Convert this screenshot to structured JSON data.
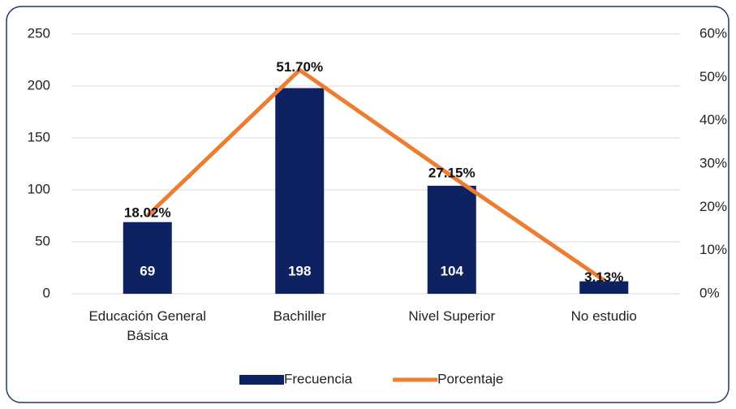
{
  "chart_data": {
    "type": "bar",
    "categories": [
      "Educación General Básica",
      "Bachiller",
      "Nivel Superior",
      "No estudio"
    ],
    "series": [
      {
        "name": "Frecuencia",
        "type": "bar",
        "color": "#0e2160",
        "values": [
          69,
          198,
          104,
          12
        ]
      },
      {
        "name": "Porcentaje",
        "type": "line",
        "axis": "y2",
        "color": "#ed7d31",
        "values": [
          18.02,
          51.7,
          27.15,
          3.13
        ],
        "value_labels": [
          "18.02%",
          "51.70%",
          "27.15%",
          "3.13%"
        ]
      }
    ],
    "ylim": [
      0,
      250
    ],
    "yticks": [
      0,
      50,
      100,
      150,
      200,
      250
    ],
    "y2lim": [
      0,
      60
    ],
    "y2ticks": [
      {
        "value": 0,
        "label": "0%"
      },
      {
        "value": 10,
        "label": "10%"
      },
      {
        "value": 20,
        "label": "20%"
      },
      {
        "value": 30,
        "label": "30%"
      },
      {
        "value": 40,
        "label": "40%"
      },
      {
        "value": 50,
        "label": "50%"
      },
      {
        "value": 60,
        "label": "60%"
      }
    ],
    "grid": true,
    "legend": "bottom"
  }
}
